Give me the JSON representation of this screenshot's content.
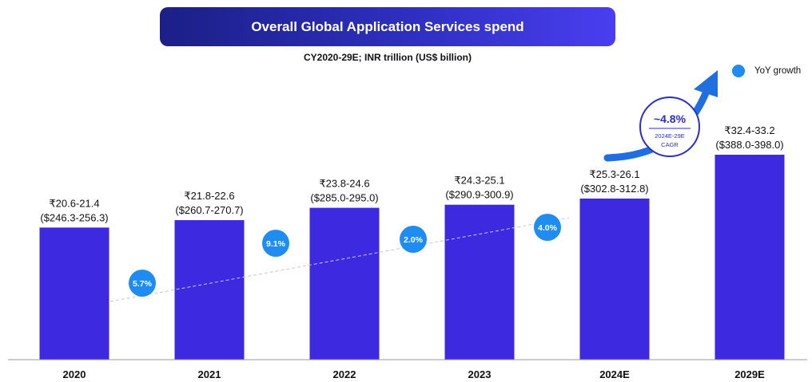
{
  "header": {
    "title": "Overall Global Application Services spend",
    "subtitle": "CY2020-29E; INR trillion (US$ billion)"
  },
  "legend": {
    "label": "YoY growth",
    "color": "#1e8cf0"
  },
  "colors": {
    "bar": "#3d2ae0",
    "bubble": "#1e8cf0",
    "cagr": "#2b2fc2",
    "arrow": "#1f6fe0"
  },
  "chart_data": {
    "type": "bar",
    "categories": [
      "2020",
      "2021",
      "2022",
      "2023",
      "2024E",
      "2029E"
    ],
    "values_inr_trillion_low": [
      20.6,
      21.8,
      23.8,
      24.3,
      25.3,
      32.4
    ],
    "values_inr_trillion_high": [
      21.4,
      22.6,
      24.6,
      25.1,
      26.1,
      33.2
    ],
    "labels_inr": [
      "₹20.6-21.4",
      "₹21.8-22.6",
      "₹23.8-24.6",
      "₹24.3-25.1",
      "₹25.3-26.1",
      "₹32.4-33.2"
    ],
    "labels_usd": [
      "($246.3-256.3)",
      "($260.7-270.7)",
      "($285.0-295.0)",
      "($290.9-300.9)",
      "($302.8-312.8)",
      "($388.0-398.0)"
    ],
    "yoy_growth": [
      "5.7%",
      "9.1%",
      "2.0%",
      "4.0%"
    ],
    "cagr": {
      "value": "~4.8%",
      "period": "2024E-29E",
      "label": "CAGR"
    },
    "ylim": [
      0,
      33.2
    ]
  }
}
